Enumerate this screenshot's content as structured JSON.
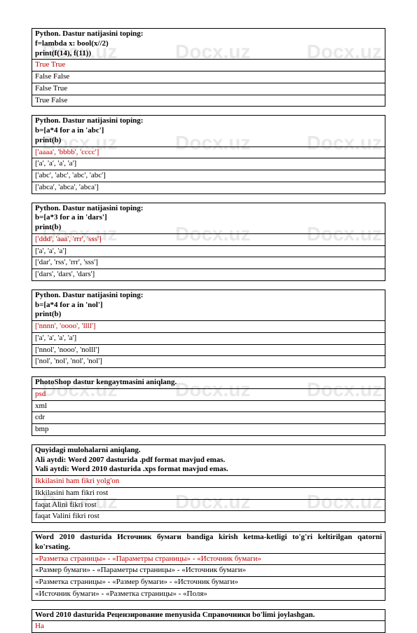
{
  "watermark": "Docx.uz",
  "blocks": [
    {
      "header": [
        "Python. Dastur natijasini toping:",
        "f=lambda x: bool(x//2)",
        "print(f(14), f(11))"
      ],
      "correct": "True True",
      "options": [
        "False False",
        "False True",
        "True False"
      ]
    },
    {
      "header": [
        "Python. Dastur natijasini toping:",
        "b=[a*4 for a in 'abc']",
        "print(b)"
      ],
      "correct": "['aaaa', 'bbbb', 'cccc']",
      "options": [
        "['a', 'a', 'a', 'a']",
        "['abc', 'abc', 'abc', 'abc']",
        "['abca', 'abca', 'abca']"
      ]
    },
    {
      "header": [
        "Python. Dastur natijasini toping:",
        "b=[a*3 for a in 'dars']",
        "print(b)"
      ],
      "correct": "['ddd', 'aaa', 'rrr', 'sss']",
      "options": [
        "['a', 'a', 'a']",
        "['dar', 'rss', 'rrr', 'sss']",
        "['dars', 'dars', 'dars']"
      ]
    },
    {
      "header": [
        "Python. Dastur natijasini toping:",
        "b=[a*4 for a in 'nol']",
        "print(b)"
      ],
      "correct": "['nnnn', 'oooo', 'llll']",
      "options": [
        "['a', 'a', 'a', 'a']",
        "['nnol', 'nooo', 'nolll']",
        "['nol', 'nol', 'nol', 'nol']"
      ]
    },
    {
      "header": [
        "PhotoShop dastur kengaytmasini aniqlang."
      ],
      "correct": "psd",
      "options": [
        "xml",
        "cdr",
        "bmp"
      ]
    },
    {
      "header": [
        "Quyidagi mulohalarni aniqlang.",
        "Ali aytdi: Word 2007 dasturida .pdf format mavjud emas.",
        "Vali aytdi: Word 2010 dasturida .xps format mavjud emas."
      ],
      "correct": "Ikkilasini ham fikri yolg'on",
      "options": [
        "Ikkilasini ham fikri rost",
        "faqat Alini fikri rost",
        "faqat Valini fikri rost"
      ]
    },
    {
      "header": [
        "Word 2010 dasturida Источник бумаги bandiga kirish ketma-ketligi to'g'ri keltirilgan qatorni ko'rsating."
      ],
      "justify": true,
      "correct": "«Разметка страницы» - «Параметры страницы» - «Источник бумаги»",
      "options": [
        "«Размер бумаги» - «Параметры страницы» - «Источник бумаги»",
        "«Разметка страницы» - «Размер бумаги» - «Источник бумаги»",
        "«Источник бумаги» - «Разметка страницы» - «Поля»"
      ]
    },
    {
      "header": [
        "Word 2010 dasturida Рецензирование menyusida Справочники bo'limi joylashgan."
      ],
      "correct": "Ha",
      "options": []
    }
  ]
}
